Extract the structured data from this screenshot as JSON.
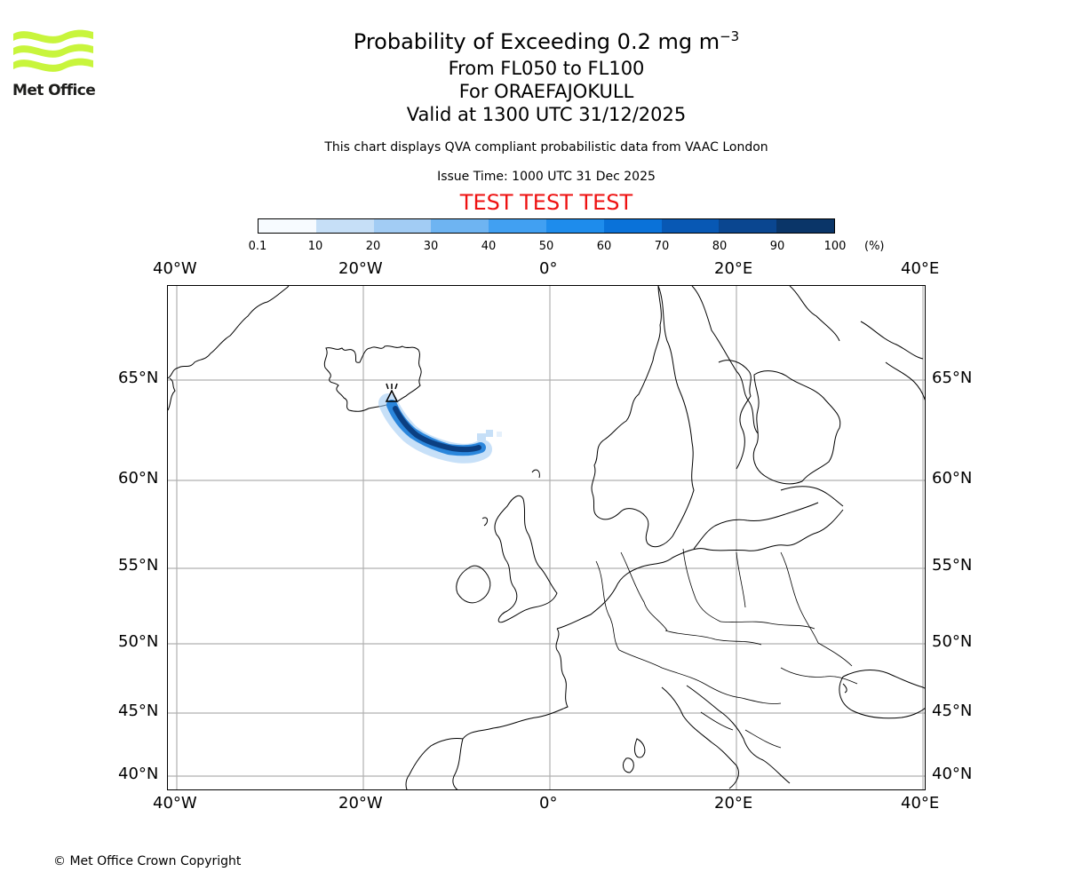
{
  "title": "Probability of Exceeding 0.2 mg m",
  "title_unit_exponent": "−3",
  "level_range": "From FL050 to FL100",
  "volcano": "For ORAEFAJOKULL",
  "valid_time": "Valid at 1300 UTC 31/12/2025",
  "note": "This chart displays QVA compliant probabilistic data from VAAC London",
  "issue_time": "Issue Time: 1000 UTC 31 Dec 2025",
  "test_banner": "TEST TEST TEST",
  "logo_text": "Met Office",
  "copyright": "© Met Office Crown Copyright",
  "colorbar": {
    "ticks": [
      "0.1",
      "10",
      "20",
      "30",
      "40",
      "50",
      "60",
      "70",
      "80",
      "90",
      "100"
    ],
    "unit": "(%)",
    "colors": [
      "#f7fbff",
      "#c6dff7",
      "#a2ccf4",
      "#6eb4f2",
      "#41a0f2",
      "#1e8cec",
      "#0a72d9",
      "#0858b4",
      "#0a4690",
      "#0a3568"
    ]
  },
  "map": {
    "lon_labels": [
      "40°W",
      "20°W",
      "0°",
      "20°E",
      "40°E"
    ],
    "lat_labels": [
      "65°N",
      "60°N",
      "55°N",
      "50°N",
      "45°N",
      "40°N"
    ],
    "volcano_marker": "volcano-triangle-icon"
  }
}
